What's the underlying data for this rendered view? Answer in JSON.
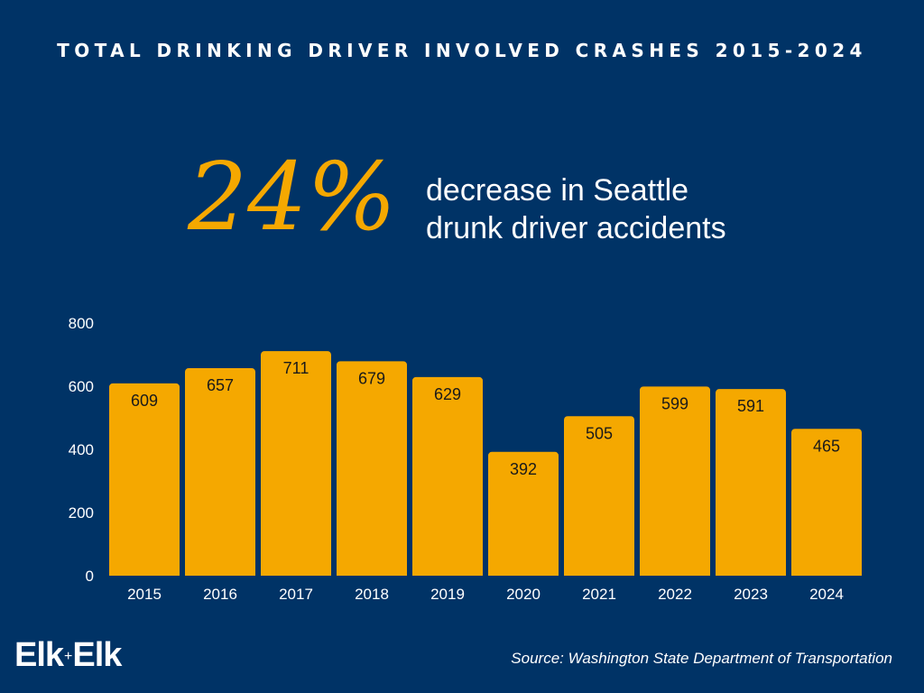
{
  "header": {
    "title": "TOTAL DRINKING DRIVER INVOLVED CRASHES 2015-2024"
  },
  "highlight": {
    "value": "24%",
    "description_line1": "decrease in Seattle",
    "description_line2": "drunk driver accidents"
  },
  "footer": {
    "logo_left": "Elk",
    "logo_plus": "+",
    "logo_right": "Elk",
    "source": "Source: Washington State Department of Transportation"
  },
  "colors": {
    "background": "#003366",
    "bar": "#f5a800",
    "accent": "#f5a800",
    "text": "#ffffff",
    "data_label": "#1a1a1a"
  },
  "chart_data": {
    "type": "bar",
    "title": "TOTAL DRINKING DRIVER INVOLVED CRASHES 2015-2024",
    "categories": [
      "2015",
      "2016",
      "2017",
      "2018",
      "2019",
      "2020",
      "2021",
      "2022",
      "2023",
      "2024"
    ],
    "values": [
      609,
      657,
      711,
      679,
      629,
      392,
      505,
      599,
      591,
      465
    ],
    "ylim": [
      0,
      800
    ],
    "yticks": [
      0,
      200,
      400,
      600,
      800
    ],
    "xlabel": "",
    "ylabel": "",
    "grid": false,
    "legend": "none",
    "data_labels": true
  }
}
